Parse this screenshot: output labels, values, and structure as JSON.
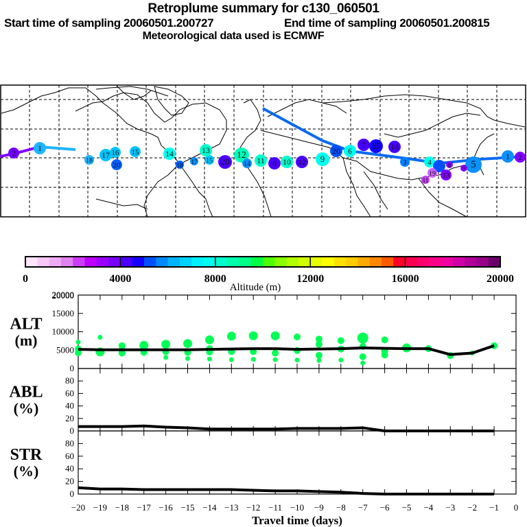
{
  "header": {
    "title": "Retroplume summary for c130_060501",
    "start_label": "Start time of sampling 20060501.200727",
    "end_label": "End time of sampling 20060501.200815",
    "met_label": "Meteorological data used is ECMWF"
  },
  "map": {
    "description": "World map with retroplume trajectory clusters labeled by travel day",
    "marker_labels": [
      "1",
      "2",
      "3",
      "4",
      "5",
      "6",
      "7",
      "8",
      "9",
      "10",
      "11",
      "12",
      "13",
      "14",
      "15",
      "16",
      "17",
      "18",
      "19",
      "20"
    ]
  },
  "colorbar": {
    "ticks": [
      "0",
      "4000",
      "8000",
      "12000",
      "16000",
      "20000"
    ],
    "label": "Altitude (m)",
    "colors": [
      "#ffe6fa",
      "#f9c8f9",
      "#f0aaf5",
      "#e082f0",
      "#cc3cf4",
      "#be00ff",
      "#9b00ff",
      "#7800ff",
      "#4a00ff",
      "#1400ff",
      "#0050ff",
      "#0088ff",
      "#00b4ff",
      "#00d2ff",
      "#00f0ff",
      "#00ffee",
      "#00ffcc",
      "#00ffaa",
      "#00ff88",
      "#00ff44",
      "#4dff00",
      "#88ff00",
      "#b0ff00",
      "#d2ff00",
      "#e6ff00",
      "#ffff00",
      "#ffe000",
      "#ffcc00",
      "#ffaa00",
      "#ff8800",
      "#ff5a00",
      "#ff0028",
      "#ff0050",
      "#ff0070",
      "#ff0088",
      "#f000a0",
      "#d000a8",
      "#b00098",
      "#980088",
      "#6a006a"
    ]
  },
  "chart_data": [
    {
      "type": "line",
      "panel": "ALT",
      "ylabel_line1": "ALT",
      "ylabel_line2": "(m)",
      "ylim": [
        0,
        20000
      ],
      "yticks": [
        "0",
        "5000",
        "10000",
        "15000",
        "20000"
      ],
      "x": [
        -20,
        -19,
        -18,
        -17,
        -16,
        -15,
        -14,
        -13,
        -12,
        -11,
        -10,
        -9,
        -8,
        -7,
        -6,
        -5,
        -4,
        -3,
        -2,
        -1
      ],
      "values": [
        5200,
        5100,
        5100,
        5100,
        5100,
        5100,
        5200,
        5300,
        5400,
        5400,
        5200,
        5300,
        5400,
        5600,
        5500,
        5400,
        5400,
        3800,
        4200,
        6200
      ],
      "scatter_series": {
        "name": "cluster altitudes",
        "color": "#00ff55",
        "points": [
          [
            -20,
            7200,
            1
          ],
          [
            -20,
            5300,
            2
          ],
          [
            -20,
            4300,
            2
          ],
          [
            -19,
            8500,
            1
          ],
          [
            -19,
            4500,
            3
          ],
          [
            -18,
            6200,
            2
          ],
          [
            -18,
            5000,
            2
          ],
          [
            -18,
            4200,
            2
          ],
          [
            -17,
            6300,
            3
          ],
          [
            -17,
            4400,
            2
          ],
          [
            -16,
            6600,
            3
          ],
          [
            -16,
            4600,
            2
          ],
          [
            -16,
            3000,
            1
          ],
          [
            -15,
            6800,
            3
          ],
          [
            -15,
            4400,
            2
          ],
          [
            -15,
            2700,
            1
          ],
          [
            -14,
            7800,
            3
          ],
          [
            -14,
            5400,
            2
          ],
          [
            -14,
            4500,
            2
          ],
          [
            -14,
            2600,
            1
          ],
          [
            -13,
            8800,
            3
          ],
          [
            -13,
            4600,
            2
          ],
          [
            -13,
            2400,
            1
          ],
          [
            -12,
            8900,
            3
          ],
          [
            -12,
            4600,
            2
          ],
          [
            -12,
            2500,
            1
          ],
          [
            -11,
            8900,
            3
          ],
          [
            -11,
            4200,
            2
          ],
          [
            -11,
            2400,
            1
          ],
          [
            -10,
            8600,
            2
          ],
          [
            -10,
            4900,
            2
          ],
          [
            -10,
            2300,
            1
          ],
          [
            -9,
            8000,
            2
          ],
          [
            -9,
            6600,
            2
          ],
          [
            -9,
            3600,
            2
          ],
          [
            -9,
            2200,
            1
          ],
          [
            -8,
            7600,
            2
          ],
          [
            -8,
            5300,
            2
          ],
          [
            -8,
            2300,
            1
          ],
          [
            -7,
            8300,
            4
          ],
          [
            -7,
            6000,
            2
          ],
          [
            -7,
            3200,
            2
          ],
          [
            -7,
            1500,
            1
          ],
          [
            -6,
            7800,
            2
          ],
          [
            -6,
            4800,
            2
          ],
          [
            -6,
            3700,
            2
          ],
          [
            -5,
            5600,
            3
          ],
          [
            -4,
            5400,
            2
          ],
          [
            -3,
            3500,
            2
          ],
          [
            -2,
            4200,
            1
          ],
          [
            -1,
            6200,
            2
          ]
        ]
      }
    },
    {
      "type": "line",
      "panel": "ABL",
      "ylabel_line1": "ABL",
      "ylabel_line2": "(%)",
      "ylim": [
        0,
        100
      ],
      "yticks": [
        "0",
        "20",
        "40",
        "60",
        "80"
      ],
      "x": [
        -20,
        -19,
        -18,
        -17,
        -16,
        -15,
        -14,
        -13,
        -12,
        -11,
        -10,
        -9,
        -8,
        -7,
        -6,
        -5,
        -4,
        -3,
        -2,
        -1
      ],
      "values": [
        7,
        7,
        7,
        8,
        6,
        5,
        3,
        3,
        3,
        3,
        4,
        4,
        4,
        5,
        0,
        0,
        0,
        0,
        0,
        0
      ]
    },
    {
      "type": "line",
      "panel": "STR",
      "ylabel_line1": "STR",
      "ylabel_line2": "(%)",
      "ylim": [
        0,
        100
      ],
      "yticks": [
        "0",
        "20",
        "40",
        "60",
        "80"
      ],
      "x": [
        -20,
        -19,
        -18,
        -17,
        -16,
        -15,
        -14,
        -13,
        -12,
        -11,
        -10,
        -9,
        -8,
        -7,
        -6,
        -5,
        -4,
        -3,
        -2,
        -1
      ],
      "values": [
        10,
        8,
        8,
        7,
        7,
        7,
        7,
        7,
        6,
        5,
        5,
        4,
        3,
        1,
        0,
        0,
        0,
        0,
        0,
        0
      ],
      "xlabel": "Travel time (days)",
      "xticks": [
        "-20",
        "-19",
        "-18",
        "-17",
        "-16",
        "-15",
        "-14",
        "-13",
        "-12",
        "-11",
        "-10",
        "-9",
        "-8",
        "-7",
        "-6",
        "-5",
        "-4",
        "-3",
        "-2",
        "-1",
        "0"
      ],
      "xlim": [
        -20,
        0
      ]
    }
  ]
}
